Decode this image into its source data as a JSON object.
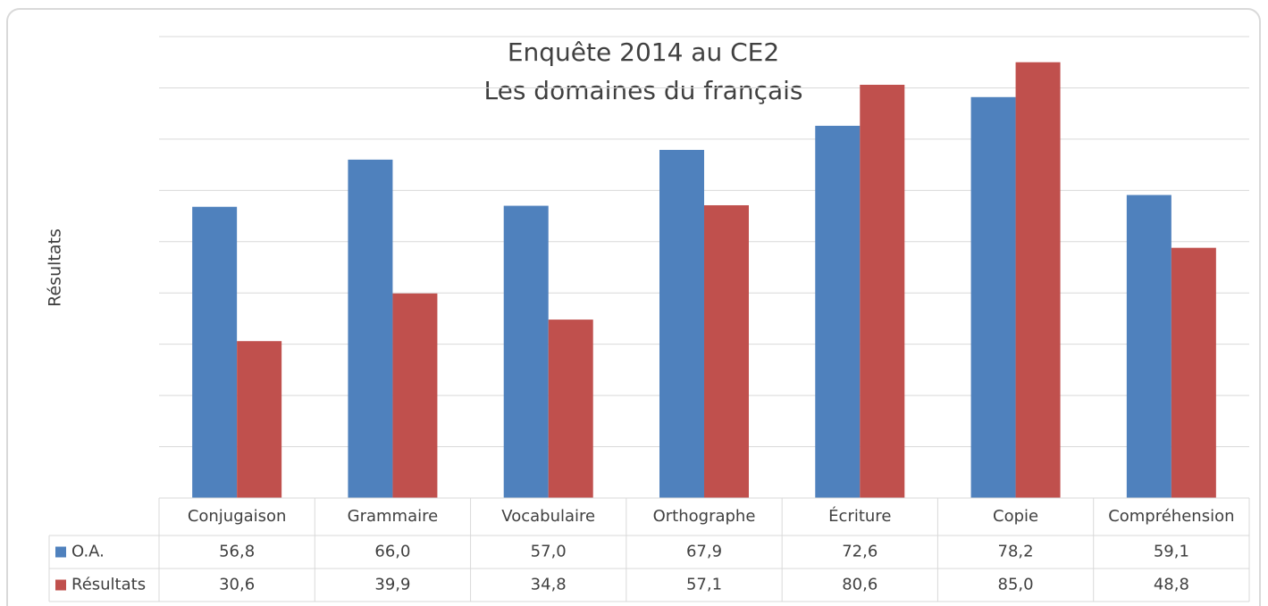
{
  "chart_data": {
    "type": "bar",
    "title": "Enquête 2014  au CE2",
    "subtitle": "Les domaines du français",
    "y_label": "Résultats",
    "categories": [
      "Conjugaison",
      "Grammaire",
      "Vocabulaire",
      "Orthographe",
      "Écriture",
      "Copie",
      "Compréhension"
    ],
    "series": [
      {
        "name": "O.A.",
        "color": "#4f81bd",
        "values": [
          56.8,
          66.0,
          57.0,
          67.9,
          72.6,
          78.2,
          59.1
        ],
        "value_labels": [
          "56,8",
          "66,0",
          "57,0",
          "67,9",
          "72,6",
          "78,2",
          "59,1"
        ]
      },
      {
        "name": "Résultats",
        "color": "#c0504d",
        "values": [
          30.6,
          39.9,
          34.8,
          57.1,
          80.6,
          85.0,
          48.8
        ],
        "value_labels": [
          "30,6",
          "39,9",
          "34,8",
          "57,1",
          "80,6",
          "85,0",
          "48,8"
        ]
      }
    ],
    "ylim": [
      0,
      90
    ],
    "yticks": [
      0,
      10,
      20,
      30,
      40,
      50,
      60,
      70,
      80,
      90
    ],
    "grid": true
  }
}
